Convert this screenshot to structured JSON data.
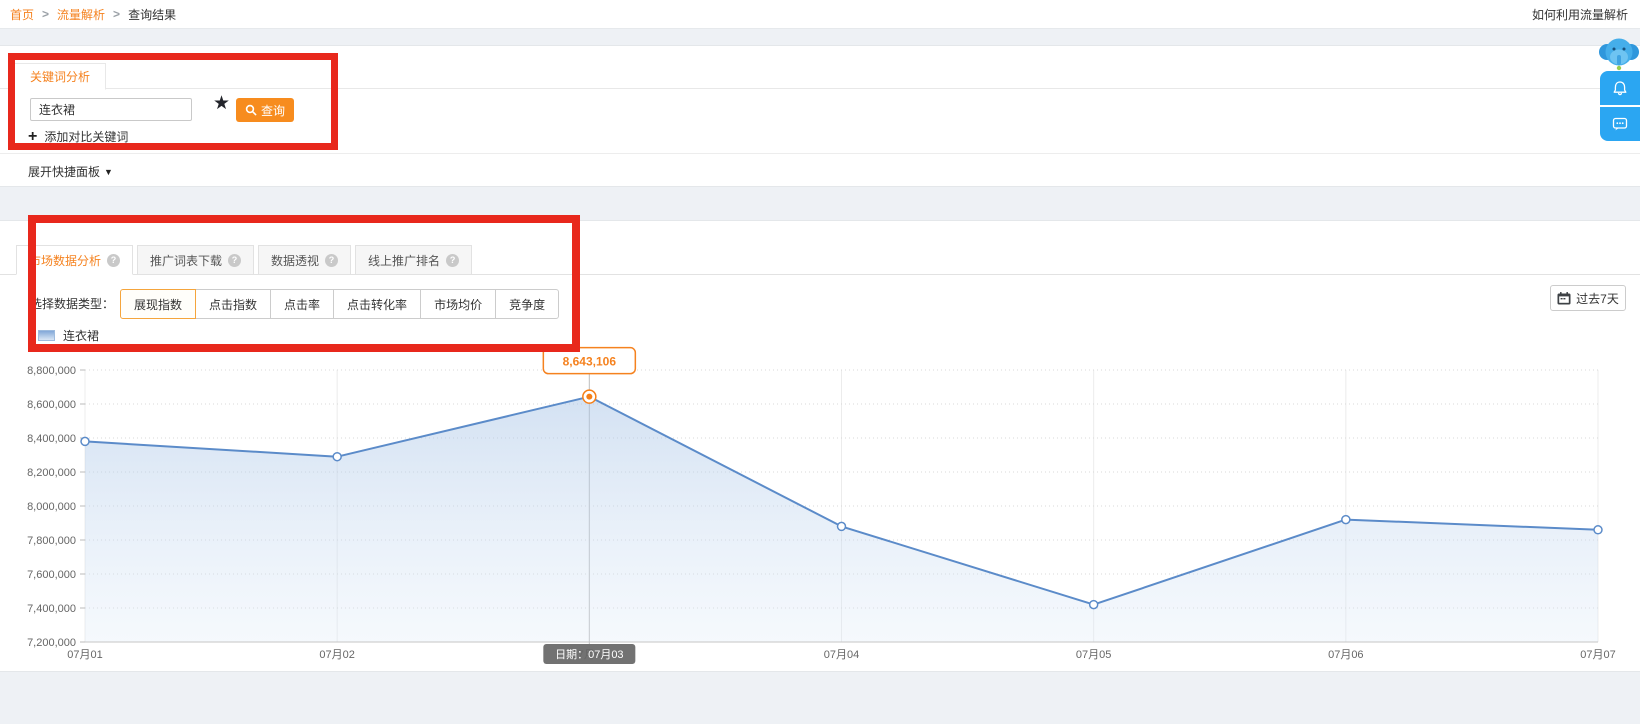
{
  "page": {
    "breadcrumb": [
      "首页",
      "流量解析",
      "查询结果"
    ],
    "help_link": "如何利用流量解析"
  },
  "keyword_panel": {
    "tab_label": "关键词分析",
    "input_value": "连衣裙",
    "search_label": "查询",
    "add_compare_label": "添加对比关键词",
    "expand_label": "展开快捷面板"
  },
  "market_panel": {
    "tabs": [
      {
        "label": "市场数据分析",
        "active": true
      },
      {
        "label": "推广词表下载",
        "active": false
      },
      {
        "label": "数据透视",
        "active": false
      },
      {
        "label": "线上推广排名",
        "active": false
      }
    ],
    "datatype_label": "选择数据类型：",
    "datatype_options": [
      {
        "label": "展现指数",
        "active": true
      },
      {
        "label": "点击指数",
        "active": false
      },
      {
        "label": "点击率",
        "active": false
      },
      {
        "label": "点击转化率",
        "active": false
      },
      {
        "label": "市场均价",
        "active": false
      },
      {
        "label": "竞争度",
        "active": false
      }
    ],
    "date_range_label": "过去7天",
    "legend_label": "连衣裙"
  },
  "chart_data": {
    "type": "area",
    "categories": [
      "07月01",
      "07月02",
      "07月03",
      "07月04",
      "07月05",
      "07月06",
      "07月07"
    ],
    "series": [
      {
        "name": "连衣裙",
        "values": [
          8380000,
          8290000,
          8643106,
          7880000,
          7420000,
          7920000,
          7860000
        ]
      }
    ],
    "ylim": [
      7200000,
      8800000
    ],
    "ytick_step": 200000,
    "grid": true,
    "legend_position": "top-left",
    "line_color": "#5b8bc9",
    "highlight": {
      "index": 2,
      "tooltip": "8,643,106",
      "axis_badge": "日期：07月03"
    }
  },
  "colors": {
    "accent_orange": "#f5821f",
    "annotation_red": "#e8281c",
    "widget_blue": "#2ba6f2",
    "chart_line": "#5b8bc9"
  }
}
